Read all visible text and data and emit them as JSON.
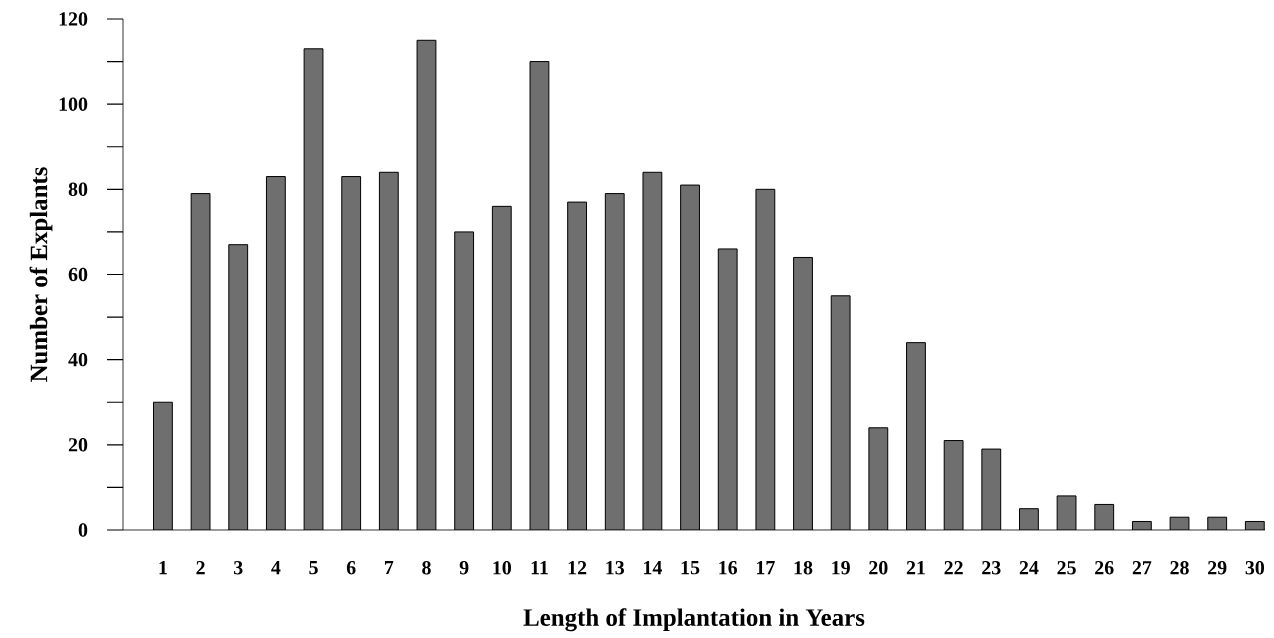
{
  "chart_data": {
    "type": "bar",
    "xlabel": "Length of Implantation in Years",
    "ylabel": "Number of Explants",
    "categories": [
      "1",
      "2",
      "3",
      "4",
      "5",
      "6",
      "7",
      "8",
      "9",
      "10",
      "11",
      "12",
      "13",
      "14",
      "15",
      "16",
      "17",
      "18",
      "19",
      "20",
      "21",
      "22",
      "23",
      "24",
      "25",
      "26",
      "27",
      "28",
      "29",
      "30"
    ],
    "values": [
      30,
      79,
      67,
      83,
      113,
      83,
      84,
      115,
      70,
      76,
      110,
      77,
      79,
      84,
      81,
      66,
      80,
      64,
      55,
      24,
      44,
      21,
      19,
      5,
      8,
      6,
      2,
      3,
      3,
      2
    ],
    "color": "#6f6f6f",
    "ylim": [
      0,
      120
    ],
    "yticks": [
      0,
      {
        "value": 10,
        "label": null
      },
      20,
      {
        "value": 30,
        "label": null
      },
      40,
      {
        "value": 50,
        "label": null
      },
      60,
      {
        "value": 70,
        "label": null
      },
      80,
      {
        "value": 90,
        "label": null
      },
      100,
      {
        "value": 110,
        "label": null
      },
      120
    ]
  }
}
